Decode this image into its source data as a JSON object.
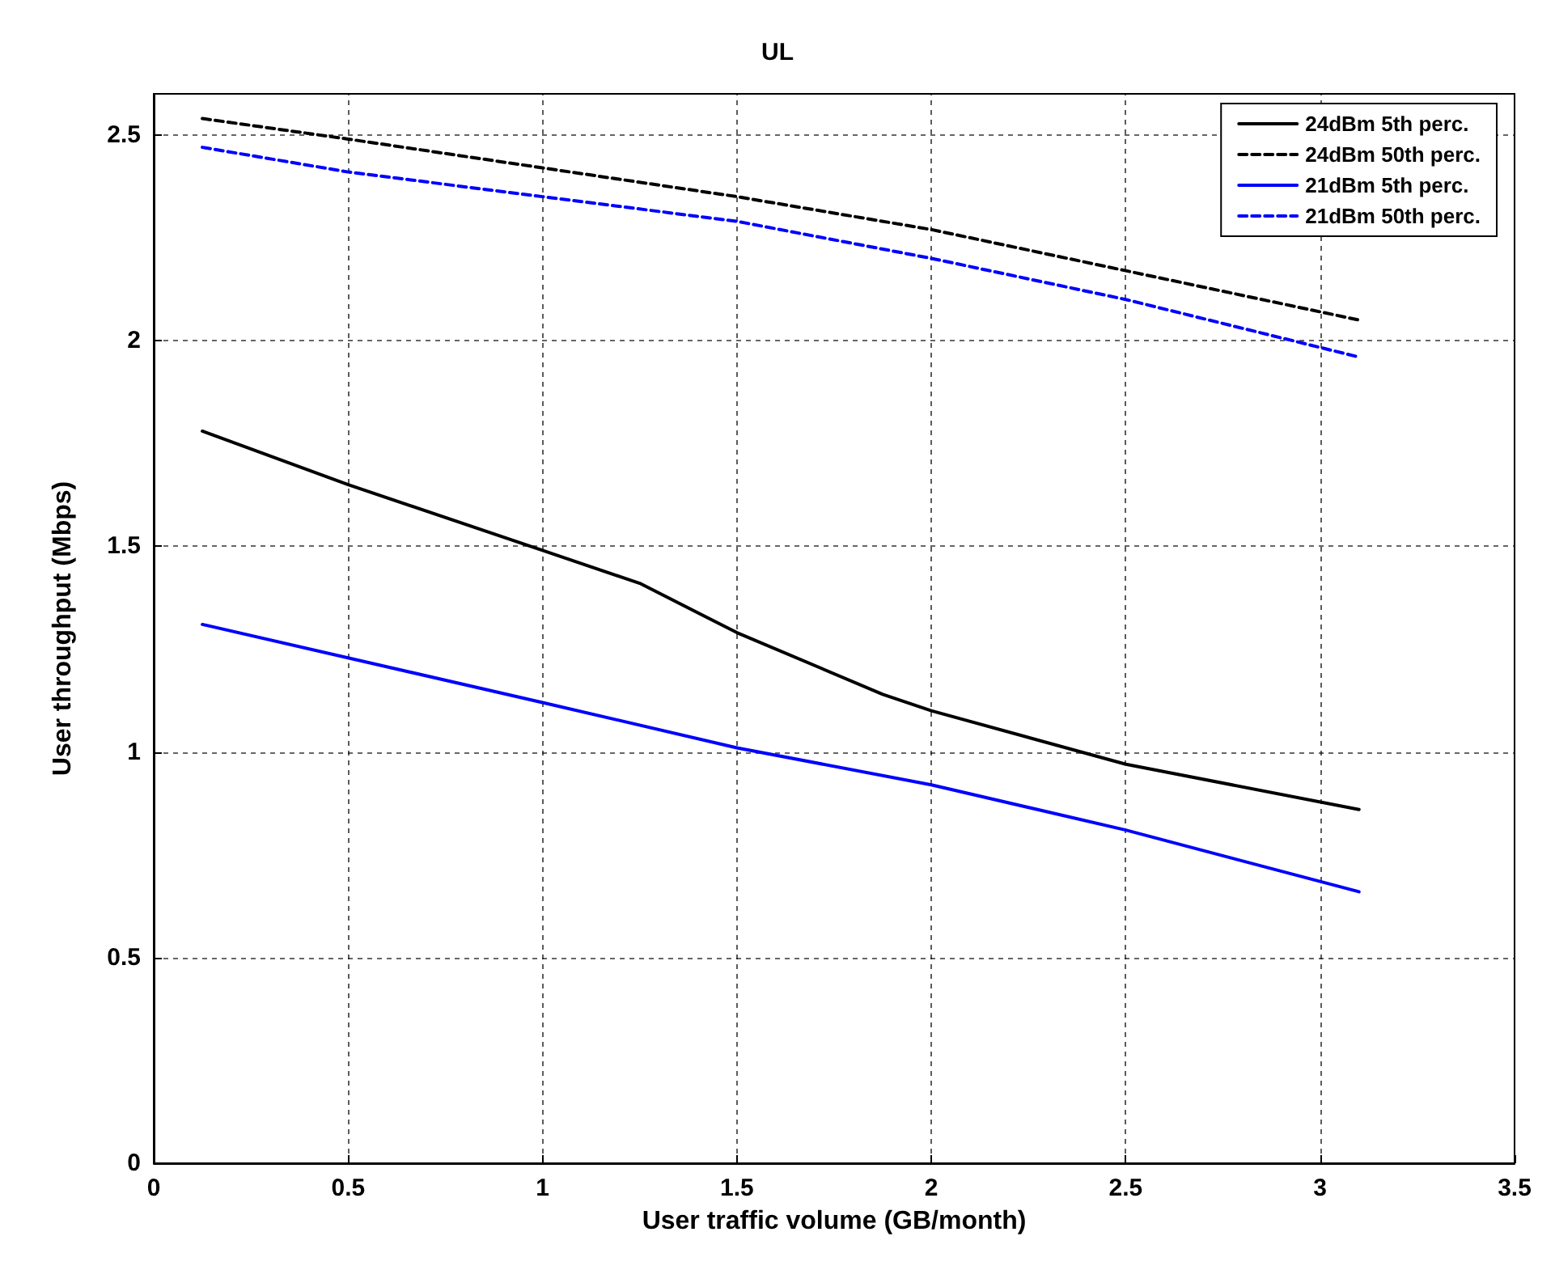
{
  "chart_data": {
    "type": "line",
    "title": "UL",
    "xlabel": "User traffic volume (GB/month)",
    "ylabel": "User throughput (Mbps)",
    "xlim": [
      0,
      3.5
    ],
    "xticks": [
      0,
      0.5,
      1,
      1.5,
      2,
      2.5,
      3,
      3.5
    ],
    "ylim": [
      0,
      2.6
    ],
    "yticks": [
      0,
      0.5,
      1,
      1.5,
      2,
      2.5
    ],
    "grid": true,
    "legend": "top right",
    "marker": "none",
    "series": [
      {
        "name": "24dBm 5th perc.",
        "color": "#000000",
        "line_style": "solid",
        "x": [
          0.125,
          0.5,
          1,
          1.25,
          1.5,
          1.875,
          2,
          2.5,
          3.1
        ],
        "values": [
          1.78,
          1.65,
          1.49,
          1.41,
          1.29,
          1.14,
          1.1,
          0.97,
          0.86
        ]
      },
      {
        "name": "24dBm 50th perc.",
        "color": "#000000",
        "line_style": "dashed",
        "x": [
          0.125,
          0.5,
          1,
          1.5,
          2,
          2.5,
          3.1
        ],
        "values": [
          2.54,
          2.49,
          2.42,
          2.35,
          2.27,
          2.17,
          2.05
        ]
      },
      {
        "name": "21dBm 5th perc.",
        "color": "#0000ff",
        "line_style": "solid",
        "x": [
          0.125,
          1,
          1.5,
          2,
          2.5,
          3.1
        ],
        "values": [
          1.31,
          1.12,
          1.01,
          0.92,
          0.81,
          0.66
        ]
      },
      {
        "name": "21dBm 50th perc.",
        "color": "#0000ff",
        "line_style": "dashed",
        "x": [
          0.125,
          0.5,
          1,
          1.5,
          2,
          2.5,
          3.1
        ],
        "values": [
          2.47,
          2.41,
          2.35,
          2.29,
          2.2,
          2.1,
          1.96
        ]
      }
    ]
  }
}
